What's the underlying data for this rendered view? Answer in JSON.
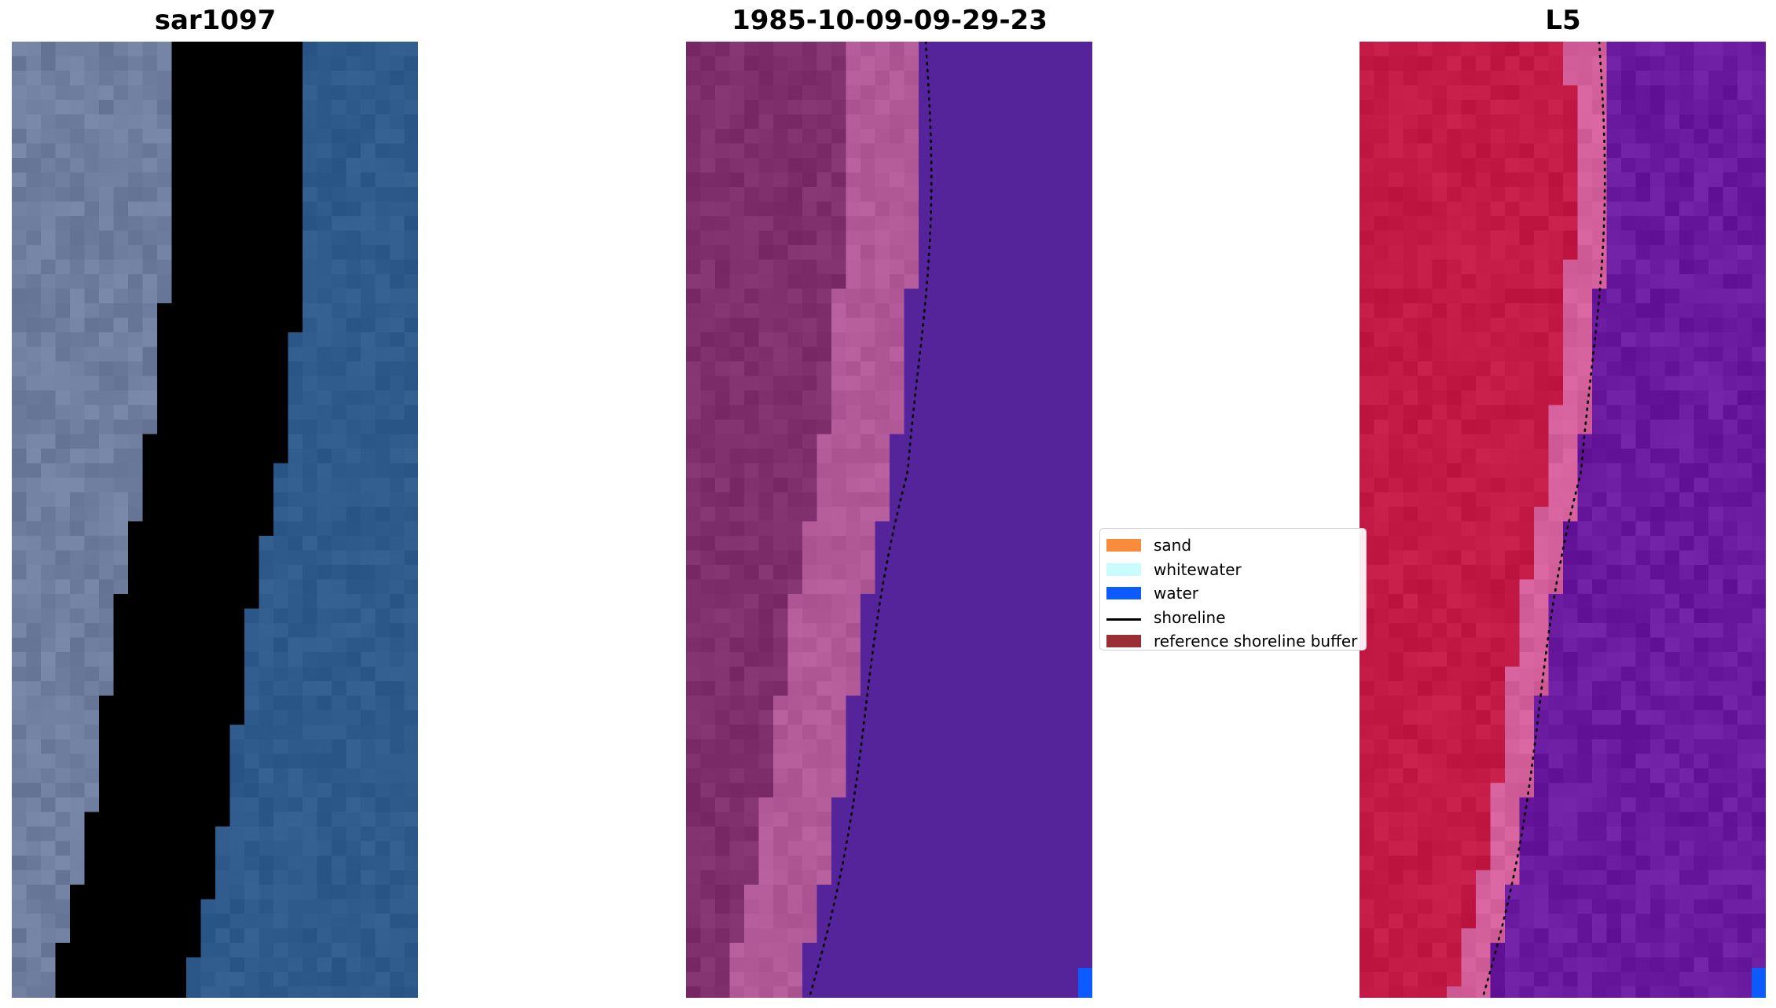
{
  "panels": [
    {
      "title": "sar1097",
      "kind": "rgb"
    },
    {
      "title": "1985-10-09-09-29-23",
      "kind": "classified"
    },
    {
      "title": "L5",
      "kind": "index"
    }
  ],
  "legend": {
    "placement": "center",
    "items": [
      {
        "label": "sand",
        "color": "#f98b3c",
        "type": "patch"
      },
      {
        "label": "whitewater",
        "color": "#c9fcfd",
        "type": "patch"
      },
      {
        "label": "water",
        "color": "#0b5bff",
        "type": "patch"
      },
      {
        "label": "shoreline",
        "color": "#000000",
        "type": "line"
      },
      {
        "label": "reference shoreline buffer",
        "color": "#9b2e34",
        "type": "patch"
      }
    ]
  },
  "colors": {
    "rgb_land": "#6f7d9e",
    "rgb_whitewater": "#f3f3f6",
    "rgb_water": "#2f5b8c",
    "overlay_land": "#7f2f6b",
    "overlay_shore": "#b25a98",
    "overlay_water": "#55239a",
    "index_land": "#c21a44",
    "index_shore": "#d3609a",
    "index_water": "#6a1a9e",
    "water_pixel": "#0b5bff"
  }
}
